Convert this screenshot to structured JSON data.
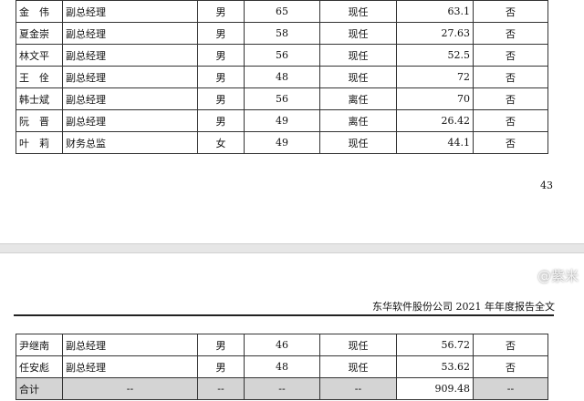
{
  "table_top": {
    "rows": [
      [
        "金　伟",
        "副总经理",
        "男",
        "65",
        "现任",
        "63.1",
        "否"
      ],
      [
        "夏金崇",
        "副总经理",
        "男",
        "58",
        "现任",
        "27.63",
        "否"
      ],
      [
        "林文平",
        "副总经理",
        "男",
        "56",
        "现任",
        "52.5",
        "否"
      ],
      [
        "王　佺",
        "副总经理",
        "男",
        "48",
        "现任",
        "72",
        "否"
      ],
      [
        "韩士斌",
        "副总经理",
        "男",
        "56",
        "离任",
        "70",
        "否"
      ],
      [
        "阮　晋",
        "副总经理",
        "男",
        "49",
        "离任",
        "26.42",
        "否"
      ],
      [
        "叶　莉",
        "财务总监",
        "女",
        "49",
        "现任",
        "44.1",
        "否"
      ]
    ]
  },
  "page_number": "43",
  "page_header": "东华软件股份公司 2021 年年度报告全文",
  "table_bottom": {
    "rows": [
      [
        "尹继南",
        "副总经理",
        "男",
        "46",
        "现任",
        "56.72",
        "否"
      ],
      [
        "任安彪",
        "副总经理",
        "男",
        "48",
        "现任",
        "53.62",
        "否"
      ]
    ],
    "total": [
      "合计",
      "--",
      "--",
      "--",
      "--",
      "909.48",
      "--"
    ]
  },
  "watermark": "@紫米"
}
